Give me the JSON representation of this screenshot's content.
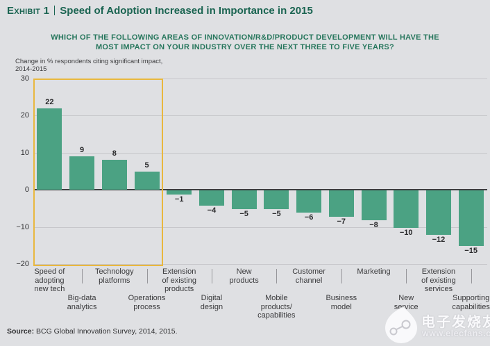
{
  "exhibit": {
    "label": "Exhibit 1",
    "title": "Speed of Adoption Increased in Importance in 2015"
  },
  "question": {
    "lines": [
      "WHICH OF THE FOLLOWING AREAS OF INNOVATION/R&D/PRODUCT DEVELOPMENT WILL HAVE THE",
      "MOST IMPACT ON YOUR INDUSTRY OVER THE NEXT THREE TO FIVE YEARS?"
    ]
  },
  "axis_note": {
    "lines": [
      "Change in % respondents citing significant impact,",
      "2014-2015"
    ]
  },
  "chart_data": {
    "type": "bar",
    "title": "Which of the following areas of innovation/R&D/product development will have the most impact on your industry over the next three to five years?",
    "xlabel": "",
    "ylabel": "Change in % respondents citing significant impact, 2014-2015",
    "categories": [
      "Speed of adopting new tech",
      "Big-data analytics",
      "Technology platforms",
      "Operations process",
      "Extension of existing products",
      "Digital design",
      "New products",
      "Mobile products/capabilities",
      "Customer channel",
      "Business model",
      "Marketing",
      "New service",
      "Extension of existing services",
      "Supporting capabilities"
    ],
    "label_lines": [
      [
        "Speed of",
        "adopting",
        "new tech"
      ],
      [
        "Big-data",
        "analytics"
      ],
      [
        "Technology",
        "platforms"
      ],
      [
        "Operations",
        "process"
      ],
      [
        "Extension",
        "of existing",
        "products"
      ],
      [
        "Digital",
        "design"
      ],
      [
        "New",
        "products"
      ],
      [
        "Mobile",
        "products/",
        "capabilities"
      ],
      [
        "Customer",
        "channel"
      ],
      [
        "Business",
        "model"
      ],
      [
        "Marketing"
      ],
      [
        "New",
        "service"
      ],
      [
        "Extension",
        "of existing",
        "services"
      ],
      [
        "Supporting",
        "capabilities"
      ]
    ],
    "values": [
      22,
      9,
      8,
      5,
      -1,
      -4,
      -5,
      -5,
      -6,
      -7,
      -8,
      -10,
      -12,
      -15
    ],
    "ylim": [
      -20,
      30
    ],
    "yticks": [
      30,
      20,
      10,
      0,
      -10,
      -20
    ],
    "grid": true,
    "legend": "none",
    "bar_color": "#4BA283",
    "highlight": {
      "from_index": 0,
      "to_index": 3,
      "border_color": "#E9B83E"
    }
  },
  "source": {
    "label": "Source:",
    "text": " BCG Global Innovation Survey, 2014, 2015."
  },
  "watermark": {
    "name": "电子发烧友",
    "url": "www.elecfans.com"
  },
  "colors": {
    "background": "#DFE0E3",
    "title_green": "#1A6451",
    "question_green": "#26765C",
    "bar_teal": "#4BA283",
    "highlight_yellow": "#E9B83E",
    "gridline": "#C7C7CB",
    "zero_line": "#3E3E40"
  }
}
